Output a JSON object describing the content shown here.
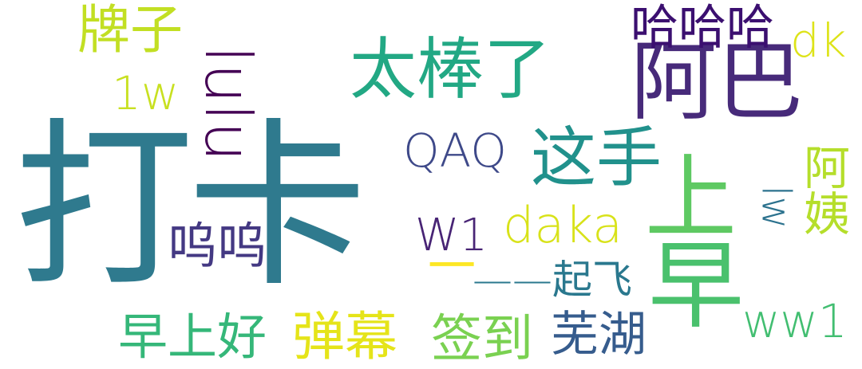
{
  "words": [
    {
      "text": "打卡",
      "color": "#2f7a8e"
    },
    {
      "text": "阿巴",
      "color": "#472a7a"
    },
    {
      "text": "太棒了",
      "color": "#22a884"
    },
    {
      "text": "哈哈哈",
      "color": "#3b0f70"
    },
    {
      "text": "牌子",
      "color": "#c2df23"
    },
    {
      "text": "1w",
      "color": "#c8e020"
    },
    {
      "text": "lulu",
      "color": "#440154"
    },
    {
      "text": "dk",
      "color": "#dde318"
    },
    {
      "text": "QAQ",
      "color": "#3e4989"
    },
    {
      "text": "这手",
      "color": "#21918c"
    },
    {
      "text": "上",
      "color": "#5ec962"
    },
    {
      "text": "阿姨",
      "color": "#b5de2b"
    },
    {
      "text": "lw",
      "color": "#2c728e"
    },
    {
      "text": "呜呜",
      "color": "#443983"
    },
    {
      "text": "W1",
      "color": "#482475"
    },
    {
      "text": "daka",
      "color": "#d8e219"
    },
    {
      "text": "一",
      "color": "#fde725"
    },
    {
      "text": "——起飞",
      "color": "#2a788e"
    },
    {
      "text": "早",
      "color": "#4ac16d"
    },
    {
      "text": "早上好",
      "color": "#35b779"
    },
    {
      "text": "弹幕",
      "color": "#e5e419"
    },
    {
      "text": "签到",
      "color": "#7ad151"
    },
    {
      "text": "芜湖",
      "color": "#365c8d"
    },
    {
      "text": "ww1",
      "color": "#42be71"
    }
  ]
}
